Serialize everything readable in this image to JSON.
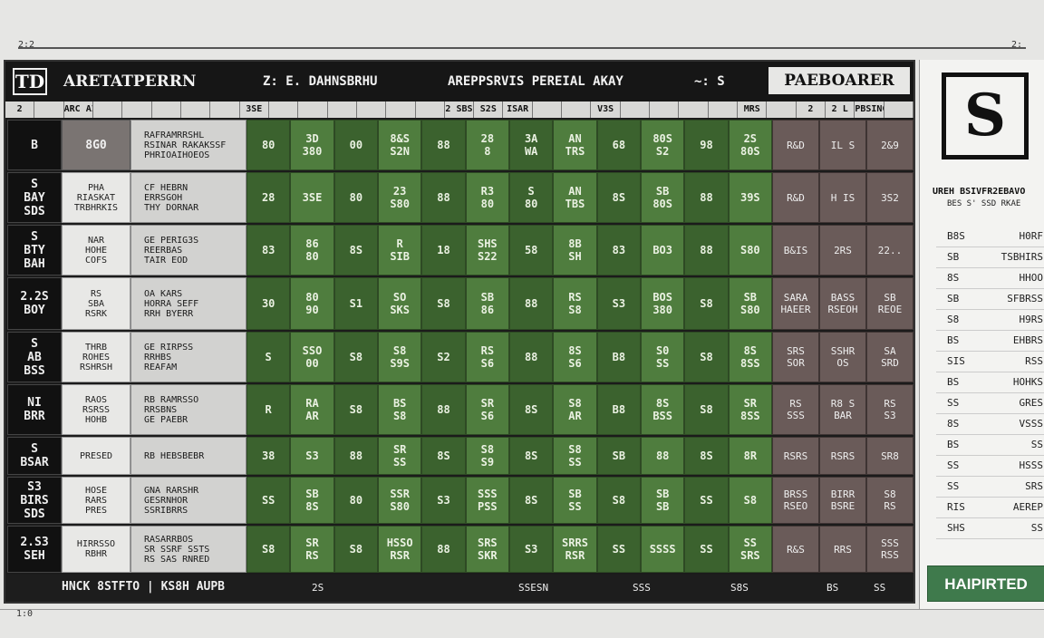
{
  "top_marks": {
    "left": "2:2",
    "right": "2:"
  },
  "bottom_mark": "1:0",
  "header": {
    "logo": "TD",
    "title": "ARETATPERRN",
    "subtitle_left": "Z: E. DAHNSBRHU",
    "subtitle_mid": "AREPPSRVIS PEREIAL AKAY",
    "subtitle_right": "~: S",
    "brand": "PAEBOARER"
  },
  "columns": [
    "2",
    "",
    "ARC AI STIRT",
    "",
    "",
    "",
    "",
    "",
    "3SE",
    "",
    "",
    "",
    "",
    "",
    "",
    "2 SBS",
    "S2S",
    "ISAR",
    "",
    "",
    "V3S",
    "",
    "",
    "",
    "",
    "MRS",
    "",
    "2",
    "2 L",
    "PBSINGS",
    ""
  ],
  "rows": [
    {
      "rank": "B",
      "team": "",
      "score": "8G0",
      "desc": "RAFRAMRRSHL\nRSINAR RAKAKSSF\nPHRIOAIHOEOS",
      "g": [
        "80",
        "3D\n380",
        "00",
        "8&S\nS2N",
        "88",
        "28\n8",
        "3A\nWA",
        "AN\nTRS",
        "68",
        "80S\nS2",
        "98",
        "2S\n80S"
      ],
      "b": [
        "R&D",
        "IL S",
        "2&9"
      ]
    },
    {
      "rank": "S\nBAY\nSDS",
      "team": "PHA\nRIASKAT\nTRBHRKIS",
      "score": "",
      "desc": "CF HEBRN\nERRSGOH\nTHY DORNAR",
      "g": [
        "28",
        "3SE",
        "80",
        "23\nS80",
        "88",
        "R3\n80",
        "S\n80",
        "AN\nTBS",
        "8S",
        "SB\n80S",
        "88",
        "39S"
      ],
      "b": [
        "R&D",
        "H IS",
        "3S2"
      ]
    },
    {
      "rank": "S\nBTY\nBAH",
      "team": "NAR\nHOHE\nCOFS",
      "score": "",
      "desc": "GE PERIG3S\nREERBAS\nTAIR EOD",
      "g": [
        "83",
        "86\n80",
        "8S",
        "R\nSIB",
        "18",
        "SHS\nS22",
        "58",
        "8B\nSH",
        "83",
        "BO3",
        "88",
        "S80"
      ],
      "b": [
        "B&IS",
        "2RS",
        "22.."
      ]
    },
    {
      "rank": "2.2S\nBOY",
      "team": "RS\nSBA\nRSRK",
      "score": "",
      "desc": "OA KARS\nHORRA SEFF\nRRH BYERR",
      "g": [
        "30",
        "80\n90",
        "S1",
        "SO\nSKS",
        "S8",
        "SB\n86",
        "88",
        "RS\nS8",
        "S3",
        "BOS\n380",
        "S8",
        "SB\nS80"
      ],
      "b": [
        "SARA\nHAEER",
        "BASS\nRSEOH",
        "SB\nREOE"
      ]
    },
    {
      "rank": "S\nAB\nBSS",
      "team": "THRB\nROHES\nRSHRSH",
      "score": "",
      "desc": "GE RIRPSS\nRRHBS\nREAFAM",
      "g": [
        "S",
        "SSO\n00",
        "S8",
        "S8\nS9S",
        "S2",
        "RS\nS6",
        "88",
        "8S\nS6",
        "B8",
        "S0\nSS",
        "S8",
        "8S\n8SS"
      ],
      "b": [
        "SRS\nSOR",
        "SSHR\nOS",
        "SA\nSRD"
      ]
    },
    {
      "rank": "NI\nBRR",
      "team": "RAOS\nRSRSS\nHOHB",
      "score": "",
      "desc": "RB RAMRSSO\nRRSBNS\nGE PAEBR",
      "g": [
        "R",
        "RA\nAR",
        "S8",
        "BS\nS8",
        "88",
        "SR\nS6",
        "8S",
        "S8\nAR",
        "B8",
        "8S\nBSS",
        "S8",
        "SR\n8SS"
      ],
      "b": [
        "RS\nSSS",
        "R8 S\nBAR",
        "RS\nS3"
      ]
    },
    {
      "rank": "S\nBSAR",
      "team": "PRESED",
      "score": "",
      "desc": "RB HEBSBEBR",
      "g": [
        "38",
        "S3",
        "88",
        "SR\nSS",
        "8S",
        "S8\nS9",
        "8S",
        "S8\nSS",
        "SB",
        "88",
        "8S",
        "8R"
      ],
      "b": [
        "RSRS",
        "RSRS",
        "SR8"
      ]
    },
    {
      "rank": "S3\nBIRS\nSDS",
      "team": "HOSE\nRARS\nPRES",
      "score": "",
      "desc": "GNA RARSHR\nGESRNHOR\nSSRIBRRS",
      "g": [
        "SS",
        "SB\n8S",
        "80",
        "SSR\nS80",
        "S3",
        "SSS\nPSS",
        "8S",
        "SB\nSS",
        "S8",
        "SB\nSB",
        "SS",
        "S8"
      ],
      "b": [
        "BRSS\nRSEO",
        "BIRR\nBSRE",
        "S8\nRS"
      ]
    },
    {
      "rank": "2.S3\nSEH",
      "team": "HIRRSSO\nRBHR",
      "score": "",
      "desc": "RASARRBOS\nSR SSRF SSTS\nRS SAS RNRED",
      "g": [
        "S8",
        "SR\nRS",
        "S8",
        "HSSO\nRSR",
        "88",
        "SRS\nSKR",
        "S3",
        "SRRS\nRSR",
        "SS",
        "SSSS",
        "SS",
        "SS\nSRS"
      ],
      "b": [
        "R&S",
        "RRS",
        "SSS\nRSS"
      ]
    }
  ],
  "footer": {
    "left": "HNCK 8STFTO | KS8H AUPB",
    "marks": [
      "2S",
      "SSESN",
      "SSS",
      "S8S",
      "BS",
      "SS"
    ]
  },
  "panel": {
    "logo": "S",
    "name": "UREH BSIVFR2EBAVO",
    "sub": "BES S' SSD RKAE",
    "items": [
      {
        "l": "B8S",
        "r": "H0RF"
      },
      {
        "l": "SB",
        "r": "TSBHIRS"
      },
      {
        "l": "8S",
        "r": "HHOO"
      },
      {
        "l": "SB",
        "r": "SFBRSS"
      },
      {
        "l": "S8",
        "r": "H9RS"
      },
      {
        "l": "BS",
        "r": "EHBRS"
      },
      {
        "l": "SIS",
        "r": "RSS"
      },
      {
        "l": "BS",
        "r": "HOHKS"
      },
      {
        "l": "SS",
        "r": "GRES"
      },
      {
        "l": "8S",
        "r": "VSSS"
      },
      {
        "l": "BS",
        "r": "SS"
      },
      {
        "l": "SS",
        "r": "HSSS"
      },
      {
        "l": "SS",
        "r": "SRS"
      },
      {
        "l": "RIS",
        "r": "AEREP"
      },
      {
        "l": "SHS",
        "r": "SS"
      }
    ],
    "button": "HAIPIRTED"
  }
}
